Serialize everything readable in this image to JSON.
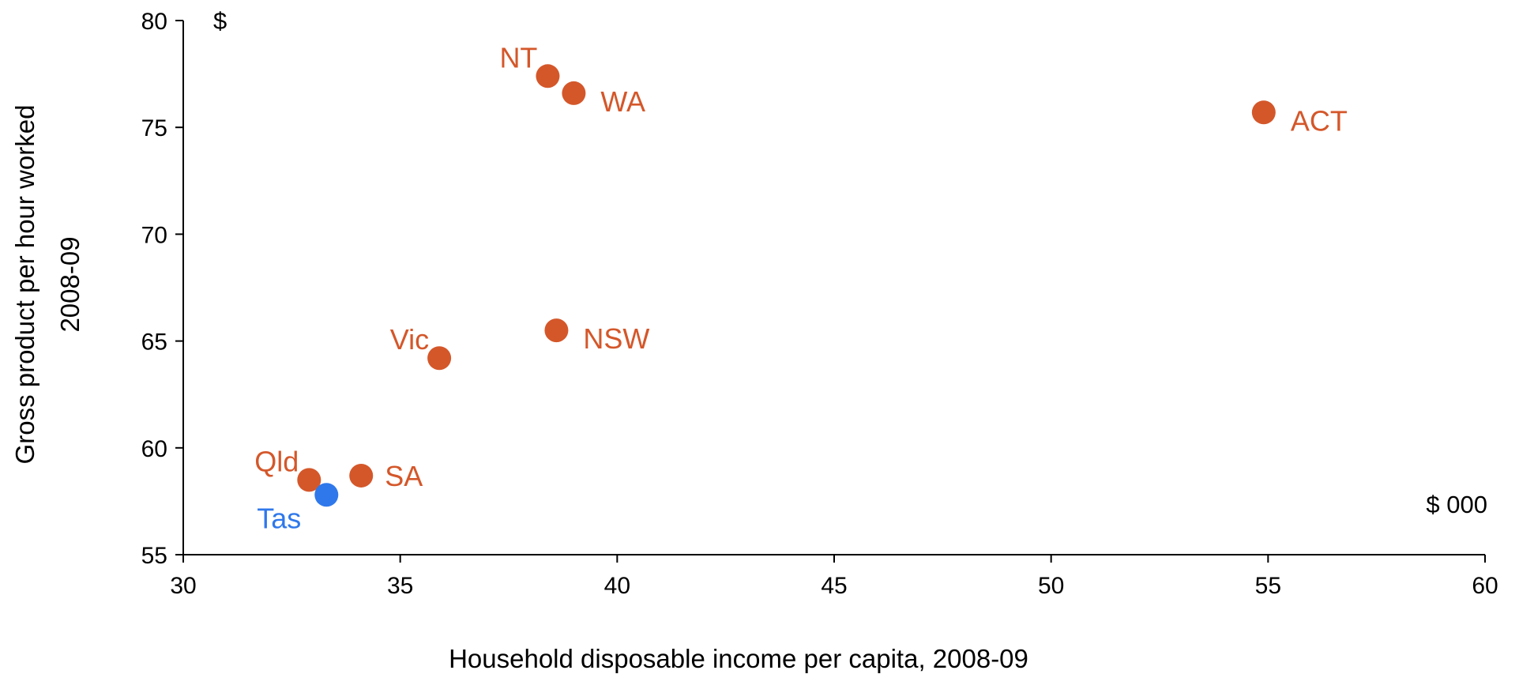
{
  "chart_data": {
    "type": "scatter",
    "title": "",
    "xlabel": "Household disposable income per capita, 2008-09",
    "ylabel_lines": [
      "Gross product per hour worked",
      "2008-09"
    ],
    "y_unit_label": "$",
    "x_unit_label": "$ 000",
    "xlim": [
      30,
      60
    ],
    "ylim": [
      55,
      80
    ],
    "x_ticks": [
      30,
      35,
      40,
      45,
      50,
      55,
      60
    ],
    "y_ticks": [
      55,
      60,
      65,
      70,
      75,
      80
    ],
    "grid": false,
    "colors": {
      "default": "#D4572A",
      "highlight": "#2F78EB"
    },
    "points": [
      {
        "label": "NT",
        "x": 38.4,
        "y": 77.4,
        "highlight": false,
        "label_pos": "upper-left"
      },
      {
        "label": "WA",
        "x": 39.0,
        "y": 76.6,
        "highlight": false,
        "label_pos": "lower-right"
      },
      {
        "label": "ACT",
        "x": 54.9,
        "y": 75.7,
        "highlight": false,
        "label_pos": "lower-right"
      },
      {
        "label": "NSW",
        "x": 38.6,
        "y": 65.5,
        "highlight": false,
        "label_pos": "lower-right"
      },
      {
        "label": "Vic",
        "x": 35.9,
        "y": 64.2,
        "highlight": false,
        "label_pos": "upper-left"
      },
      {
        "label": "Qld",
        "x": 32.9,
        "y": 58.5,
        "highlight": false,
        "label_pos": "upper-left"
      },
      {
        "label": "SA",
        "x": 34.1,
        "y": 58.7,
        "highlight": false,
        "label_pos": "right"
      },
      {
        "label": "Tas",
        "x": 33.3,
        "y": 57.8,
        "highlight": true,
        "label_pos": "lower-left"
      }
    ]
  }
}
